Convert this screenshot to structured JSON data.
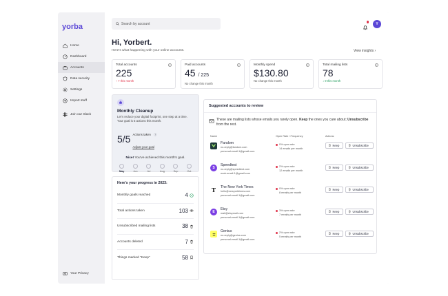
{
  "app": {
    "name": "yorba",
    "brand_color": "#5b47d6"
  },
  "sidebar": {
    "items": [
      {
        "label": "Home",
        "icon": "home-icon"
      },
      {
        "label": "Dashboard",
        "icon": "dashboard-icon"
      },
      {
        "label": "Accounts",
        "icon": "accounts-icon",
        "active": true
      },
      {
        "label": "Data security",
        "icon": "shield-icon"
      },
      {
        "label": "Settings",
        "icon": "gear-icon"
      },
      {
        "label": "Import stuff",
        "icon": "import-icon"
      },
      {
        "label": "Join our Slack",
        "icon": "slack-icon"
      }
    ],
    "footer": {
      "label": "Your Privacy",
      "icon": "privacy-icon"
    }
  },
  "header": {
    "search_placeholder": "Search by account",
    "avatar_initial": "Y",
    "greeting": "Hi, Yorbert.",
    "subtitle": "Here's what happening with your online accounts.",
    "view_insights": "View insights"
  },
  "stats": [
    {
      "label": "Total accounts",
      "value": "225",
      "change": "7 this month",
      "trend": "up"
    },
    {
      "label": "Paid accounts",
      "value": "45",
      "value_suffix": "/ 225",
      "change": "No change this month",
      "trend": "none"
    },
    {
      "label": "Monthly spend",
      "value": "$130.80",
      "change": "No change this month",
      "trend": "none"
    },
    {
      "label": "Total mailing lists",
      "value": "78",
      "change": "9 this month",
      "trend": "down"
    }
  ],
  "cleanup": {
    "title": "Monthly Cleanup",
    "description": "Let's reduce your digital footprint, one step at a time. Your goal is 5 actions this month.",
    "taken_value": "5/5",
    "taken_label": "Actions taken",
    "adjust_link": "Adjust your goal",
    "achieved_bold": "Nice!",
    "achieved_text": "You've achieved this month's goal.",
    "months": [
      "May",
      "Jun",
      "Jul",
      "Aug",
      "Sep",
      "Oct"
    ]
  },
  "progress": {
    "title": "Here's your progress in 2023:",
    "rows": [
      {
        "label": "Monthly goals reached",
        "value": "4",
        "icon": "check-circle-icon"
      },
      {
        "label": "Total actions taken",
        "value": "103",
        "icon": "eye-icon"
      },
      {
        "label": "Unsubscribed mailing lists",
        "value": "38",
        "icon": "trash-icon"
      },
      {
        "label": "Accounts deleted",
        "value": "7",
        "icon": "trash-icon"
      },
      {
        "label": "Things marked \"Keep\"",
        "value": "58",
        "icon": "bookmark-icon"
      }
    ]
  },
  "suggestions": {
    "title": "Suggested accounts to review",
    "message_pre": "These are mailing lists whose emails you rarely open. ",
    "message_bold1": "Keep",
    "message_mid": " the ones you care about; ",
    "message_bold2": "Unsubscribe",
    "message_post": " from the rest.",
    "col_name": "Name",
    "col_rate": "Open Rate / Frequency",
    "col_actions": "Actions",
    "keep_label": "Keep",
    "unsubscribe_label": "Unsubscribe",
    "rows": [
      {
        "name": "Fandom",
        "email1": "no-reply@fandom.com",
        "email2": "personal-email-1@gmail.com",
        "rate": "0% open rate",
        "freq": "14 emails per month",
        "logo_color": "#1f3a3a",
        "logo_glyph": "◆"
      },
      {
        "name": "Speedtest",
        "email1": "no-reply@speedtest.com",
        "email2": "work-email-1@gmail.com",
        "rate": "2% open rate",
        "freq": "12 emails per month",
        "logo_color": "#7b3fe4",
        "logo_glyph": "S"
      },
      {
        "name": "The New York Times",
        "email1": "hello@newyorktimes.com",
        "email2": "personal-email-1@gmail.com",
        "rate": "0% open rate",
        "freq": "8 emails per month",
        "logo_color": "#ffffff",
        "logo_glyph": "𝕿"
      },
      {
        "name": "Etsy",
        "email1": "mail@etsymail.com",
        "email2": "personal-email-1@gmail.com",
        "rate": "3% open rate",
        "freq": "7 emails per month",
        "logo_color": "#7b3fe4",
        "logo_glyph": "E"
      },
      {
        "name": "Genius",
        "email1": "no-reply@genius.com",
        "email2": "personal-email-1@gmail.com",
        "rate": "2% open rate",
        "freq": "5 emails per month",
        "logo_color": "#ffff64",
        "logo_glyph": "ツ"
      }
    ]
  }
}
